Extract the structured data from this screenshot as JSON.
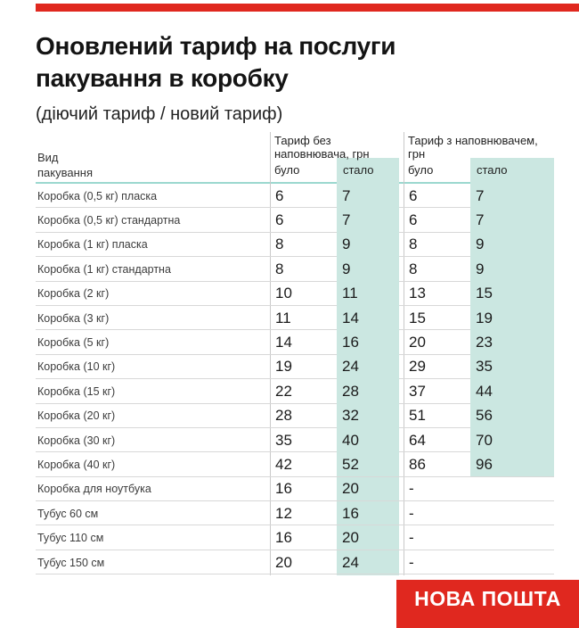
{
  "header": {
    "title_line1": "Оновлений тариф на послуги",
    "title_line2": "пакування в коробку",
    "subtitle": "(діючий тариф / новий тариф)"
  },
  "table": {
    "type_col_line1": "Вид",
    "type_col_line2": "пакування",
    "group_no_filler": "Тариф без наповнювача, грн",
    "group_filler": "Тариф з наповнювачем, грн",
    "sub_was": "було",
    "sub_now": "стало",
    "rows": [
      {
        "name": "Коробка (0,5 кг) пласка",
        "no_filler_was": "6",
        "no_filler_now": "7",
        "filler_was": "6",
        "filler_now": "7"
      },
      {
        "name": "Коробка (0,5 кг) стандартна",
        "no_filler_was": "6",
        "no_filler_now": "7",
        "filler_was": "6",
        "filler_now": "7"
      },
      {
        "name": "Коробка (1 кг) пласка",
        "no_filler_was": "8",
        "no_filler_now": "9",
        "filler_was": "8",
        "filler_now": "9"
      },
      {
        "name": "Коробка (1 кг) стандартна",
        "no_filler_was": "8",
        "no_filler_now": "9",
        "filler_was": "8",
        "filler_now": "9"
      },
      {
        "name": "Коробка (2 кг)",
        "no_filler_was": "10",
        "no_filler_now": "11",
        "filler_was": "13",
        "filler_now": "15"
      },
      {
        "name": "Коробка (3 кг)",
        "no_filler_was": "11",
        "no_filler_now": "14",
        "filler_was": "15",
        "filler_now": "19"
      },
      {
        "name": "Коробка (5 кг)",
        "no_filler_was": "14",
        "no_filler_now": "16",
        "filler_was": "20",
        "filler_now": "23"
      },
      {
        "name": "Коробка (10 кг)",
        "no_filler_was": "19",
        "no_filler_now": "24",
        "filler_was": "29",
        "filler_now": "35"
      },
      {
        "name": "Коробка (15 кг)",
        "no_filler_was": "22",
        "no_filler_now": "28",
        "filler_was": "37",
        "filler_now": "44"
      },
      {
        "name": "Коробка (20 кг)",
        "no_filler_was": "28",
        "no_filler_now": "32",
        "filler_was": "51",
        "filler_now": "56"
      },
      {
        "name": "Коробка (30 кг)",
        "no_filler_was": "35",
        "no_filler_now": "40",
        "filler_was": "64",
        "filler_now": "70"
      },
      {
        "name": "Коробка (40 кг)",
        "no_filler_was": "42",
        "no_filler_now": "52",
        "filler_was": "86",
        "filler_now": "96"
      },
      {
        "name": "Коробка для ноутбука",
        "no_filler_was": "16",
        "no_filler_now": "20",
        "filler_was": "-",
        "filler_now": ""
      },
      {
        "name": "Тубус 60 см",
        "no_filler_was": "12",
        "no_filler_now": "16",
        "filler_was": "-",
        "filler_now": ""
      },
      {
        "name": "Тубус 110 см",
        "no_filler_was": "16",
        "no_filler_now": "20",
        "filler_was": "-",
        "filler_now": ""
      },
      {
        "name": "Тубус 150 см",
        "no_filler_was": "20",
        "no_filler_now": "24",
        "filler_was": "-",
        "filler_now": ""
      }
    ]
  },
  "footer": {
    "brand": "НОВА ПОШТА"
  },
  "colors": {
    "brand_red": "#E0281F",
    "highlight_teal": "#CBE7E1",
    "header_teal_line": "#9BD8CF",
    "row_separator": "#D8D8D8",
    "column_divider": "#C9C9C9"
  },
  "chart_data": {
    "type": "table",
    "title": "Оновлений тариф на послуги пакування в коробку",
    "subtitle": "(діючий тариф / новий тариф)",
    "column_groups": [
      "Вид пакування",
      "Тариф без наповнювача, грн",
      "Тариф з наповнювачем, грн"
    ],
    "columns": [
      "Вид пакування",
      "без наповнювача: було",
      "без наповнювача: стало",
      "з наповнювачем: було",
      "з наповнювачем: стало"
    ],
    "rows": [
      [
        "Коробка (0,5 кг) пласка",
        6,
        7,
        6,
        7
      ],
      [
        "Коробка (0,5 кг) стандартна",
        6,
        7,
        6,
        7
      ],
      [
        "Коробка (1 кг) пласка",
        8,
        9,
        8,
        9
      ],
      [
        "Коробка (1 кг) стандартна",
        8,
        9,
        8,
        9
      ],
      [
        "Коробка (2 кг)",
        10,
        11,
        13,
        15
      ],
      [
        "Коробка (3 кг)",
        11,
        14,
        15,
        19
      ],
      [
        "Коробка (5 кг)",
        14,
        16,
        20,
        23
      ],
      [
        "Коробка (10 кг)",
        19,
        24,
        29,
        35
      ],
      [
        "Коробка (15 кг)",
        22,
        28,
        37,
        44
      ],
      [
        "Коробка (20 кг)",
        28,
        32,
        51,
        56
      ],
      [
        "Коробка (30 кг)",
        35,
        40,
        64,
        70
      ],
      [
        "Коробка (40 кг)",
        42,
        52,
        86,
        96
      ],
      [
        "Коробка для ноутбука",
        16,
        20,
        null,
        null
      ],
      [
        "Тубус 60 см",
        12,
        16,
        null,
        null
      ],
      [
        "Тубус 110 см",
        16,
        20,
        null,
        null
      ],
      [
        "Тубус 150 см",
        20,
        24,
        null,
        null
      ]
    ],
    "legend_position": "none",
    "grid": true,
    "highlighted_columns": [
      "без наповнювача: стало",
      "з наповнювачем: стало"
    ]
  }
}
